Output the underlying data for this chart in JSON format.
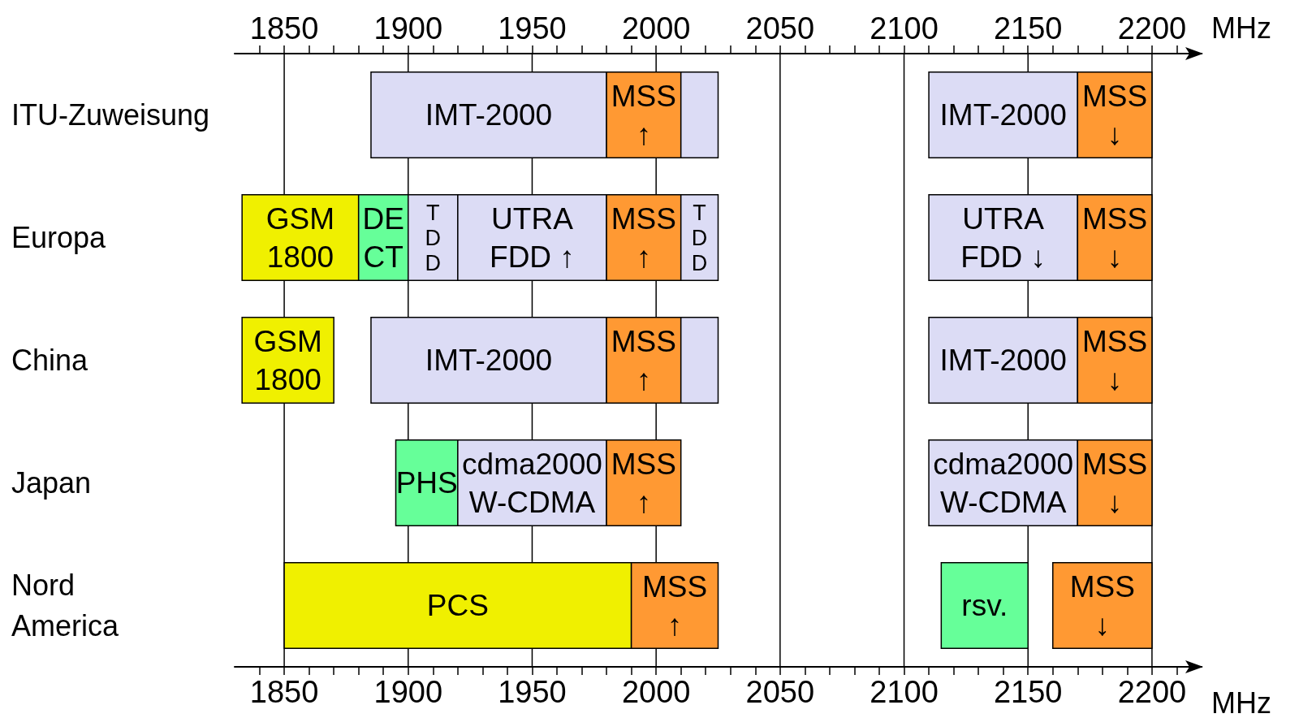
{
  "chart_data": {
    "type": "bar",
    "orientation": "horizontal",
    "xlabel": "MHz",
    "x2label": "MHz",
    "grid": "x",
    "categories": [
      "ITU-Zuweisung",
      "Europa",
      "China",
      "Japan",
      "Nord\nAmerica"
    ],
    "xlim": [
      1830,
      2220
    ],
    "x2lim": [
      1830,
      2220
    ],
    "xticks": [
      {
        "value": 1840,
        "label": null
      },
      1850,
      {
        "value": 1860,
        "label": null
      },
      {
        "value": 1870,
        "label": null
      },
      {
        "value": 1880,
        "label": null
      },
      {
        "value": 1890,
        "label": null
      },
      1900,
      {
        "value": 1910,
        "label": null
      },
      {
        "value": 1920,
        "label": null
      },
      {
        "value": 1930,
        "label": null
      },
      {
        "value": 1940,
        "label": null
      },
      1950,
      {
        "value": 1960,
        "label": null
      },
      {
        "value": 1970,
        "label": null
      },
      {
        "value": 1980,
        "label": null
      },
      {
        "value": 1990,
        "label": null
      },
      2000,
      {
        "value": 2010,
        "label": null
      },
      {
        "value": 2020,
        "label": null
      },
      {
        "value": 2030,
        "label": null
      },
      {
        "value": 2040,
        "label": null
      },
      2050,
      {
        "value": 2060,
        "label": null
      },
      {
        "value": 2070,
        "label": null
      },
      {
        "value": 2080,
        "label": null
      },
      {
        "value": 2090,
        "label": null
      },
      2100,
      {
        "value": 2110,
        "label": null
      },
      {
        "value": 2120,
        "label": null
      },
      {
        "value": 2130,
        "label": null
      },
      {
        "value": 2140,
        "label": null
      },
      2150,
      {
        "value": 2160,
        "label": null
      },
      {
        "value": 2170,
        "label": null
      },
      {
        "value": 2180,
        "label": null
      },
      {
        "value": 2190,
        "label": null
      },
      2200,
      {
        "value": 2210,
        "label": null
      }
    ],
    "x2ticks": [
      {
        "value": 1840,
        "label": null
      },
      1850,
      {
        "value": 1860,
        "label": null
      },
      {
        "value": 1870,
        "label": null
      },
      {
        "value": 1880,
        "label": null
      },
      {
        "value": 1890,
        "label": null
      },
      1900,
      {
        "value": 1910,
        "label": null
      },
      {
        "value": 1920,
        "label": null
      },
      {
        "value": 1930,
        "label": null
      },
      {
        "value": 1940,
        "label": null
      },
      1950,
      {
        "value": 1960,
        "label": null
      },
      {
        "value": 1970,
        "label": null
      },
      {
        "value": 1980,
        "label": null
      },
      {
        "value": 1990,
        "label": null
      },
      2000,
      {
        "value": 2010,
        "label": null
      },
      {
        "value": 2020,
        "label": null
      },
      {
        "value": 2030,
        "label": null
      },
      {
        "value": 2040,
        "label": null
      },
      2050,
      {
        "value": 2060,
        "label": null
      },
      {
        "value": 2070,
        "label": null
      },
      {
        "value": 2080,
        "label": null
      },
      {
        "value": 2090,
        "label": null
      },
      2100,
      {
        "value": 2110,
        "label": null
      },
      {
        "value": 2120,
        "label": null
      },
      {
        "value": 2130,
        "label": null
      },
      {
        "value": 2140,
        "label": null
      },
      2150,
      {
        "value": 2160,
        "label": null
      },
      {
        "value": 2170,
        "label": null
      },
      {
        "value": 2180,
        "label": null
      },
      {
        "value": 2190,
        "label": null
      },
      2200,
      {
        "value": 2210,
        "label": null
      }
    ],
    "series": [
      {
        "base": [
          1885,
          1833,
          1833,
          1895,
          1850
        ],
        "values": [
          95,
          47,
          37,
          25,
          140
        ],
        "colors": [
          "#dcdcf5",
          "#f0f000",
          "#f0f000",
          "#66ff99",
          "#f0f000"
        ],
        "value_labels": [
          "IMT-2000",
          "GSM\n1800",
          "GSM\n1800",
          "PHS",
          "PCS"
        ]
      },
      {
        "base": [
          1980,
          1880,
          1885,
          1920,
          1990
        ],
        "values": [
          30,
          20,
          95,
          60,
          35
        ],
        "colors": [
          "#ff9933",
          "#66ff99",
          "#dcdcf5",
          "#dcdcf5",
          "#ff9933"
        ],
        "value_labels": [
          "MSS\n↑",
          "DE\nCT",
          "IMT-2000",
          "cdma2000\nW-CDMA",
          "MSS\n↑"
        ]
      },
      {
        "base": [
          2010,
          1900,
          1980,
          1980,
          2115
        ],
        "values": [
          15,
          20,
          30,
          30,
          35
        ],
        "colors": [
          "#dcdcf5",
          "#dcdcf5",
          "#ff9933",
          "#ff9933",
          "#66ff99"
        ],
        "value_labels": [
          null,
          "T\nD\nD",
          "MSS\n↑",
          "MSS\n↑",
          "rsv."
        ]
      },
      {
        "base": [
          2110,
          1920,
          2010,
          2110,
          2160
        ],
        "values": [
          60,
          60,
          15,
          60,
          40
        ],
        "colors": [
          "#dcdcf5",
          "#dcdcf5",
          "#dcdcf5",
          "#dcdcf5",
          "#ff9933"
        ],
        "value_labels": [
          "IMT-2000",
          "UTRA\nFDD ↑",
          null,
          "cdma2000\nW-CDMA",
          "MSS\n↓"
        ]
      },
      {
        "base": [
          2170,
          1980,
          2110,
          2170,
          null
        ],
        "values": [
          30,
          30,
          60,
          30,
          null
        ],
        "colors": [
          "#ff9933",
          "#ff9933",
          "#dcdcf5",
          "#ff9933",
          null
        ],
        "value_labels": [
          "MSS\n↓",
          "MSS\n↑",
          "IMT-2000",
          "MSS\n↓",
          null
        ]
      },
      {
        "base": [
          null,
          2010,
          2170,
          null,
          null
        ],
        "values": [
          null,
          15,
          30,
          null,
          null
        ],
        "colors": [
          null,
          "#dcdcf5",
          "#ff9933",
          null,
          null
        ],
        "value_labels": [
          null,
          "T\nD\nD",
          "MSS\n↓",
          null,
          null
        ]
      },
      {
        "base": [
          null,
          2110,
          null,
          null,
          null
        ],
        "values": [
          null,
          60,
          null,
          null,
          null
        ],
        "colors": [
          null,
          "#dcdcf5",
          null,
          null,
          null
        ],
        "value_labels": [
          null,
          "UTRA\nFDD ↓",
          null,
          null,
          null
        ]
      },
      {
        "base": [
          null,
          2170,
          null,
          null,
          null
        ],
        "values": [
          null,
          30,
          null,
          null,
          null
        ],
        "colors": [
          null,
          "#ff9933",
          null,
          null,
          null
        ],
        "value_labels": [
          null,
          "MSS\n↓",
          null,
          null,
          null
        ]
      }
    ]
  }
}
